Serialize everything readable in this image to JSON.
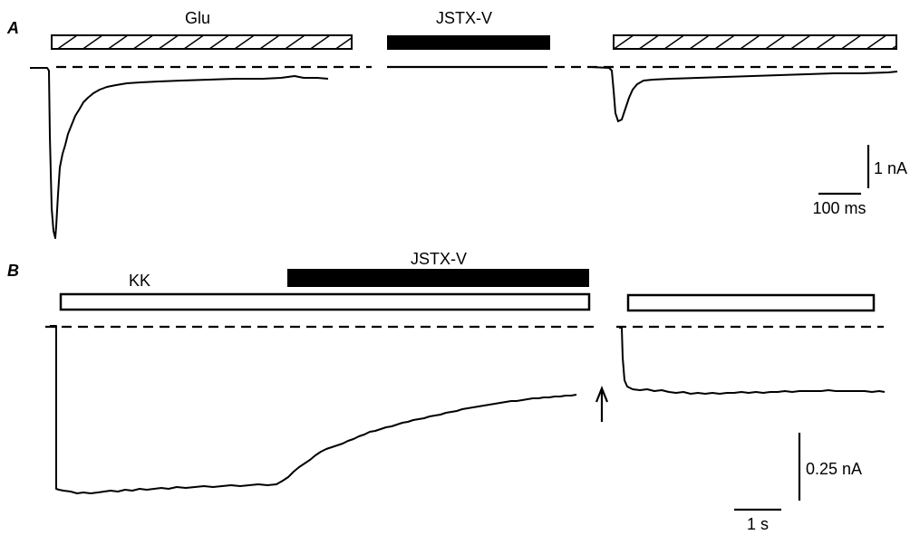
{
  "panel_a": {
    "panel_label": "A",
    "left_drug_label": "Glu",
    "toxin_label": "JSTX-V",
    "current_scale_label": "1 nA",
    "time_scale_label": "100 ms"
  },
  "panel_b": {
    "panel_label": "B",
    "left_drug_label": "KK",
    "toxin_label": "JSTX-V",
    "current_scale_label": "0.25 nA",
    "time_scale_label": "1 s"
  }
}
